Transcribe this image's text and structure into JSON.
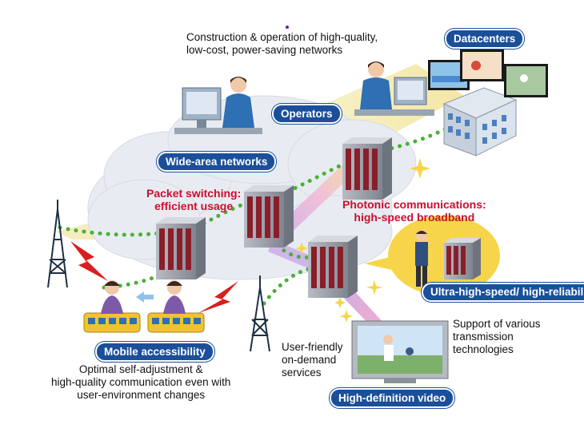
{
  "labels": {
    "datacenters": "Datacenters",
    "operators": "Operators",
    "wide_area_networks": "Wide-area networks",
    "ultra_high_speed_nodes": "Ultra-high-speed/\nhigh-reliability nodes",
    "mobile_accessibility": "Mobile accessibility",
    "hd_video": "High-definition video"
  },
  "captions": {
    "construction": "Construction & operation of high-quality,\nlow-cost, power-saving networks",
    "packet_switching": "Packet switching:\nefficient usage",
    "photonic": "Photonic communications:\nhigh-speed broadband",
    "transmission": "Support of various\ntransmission\ntechnologies",
    "on_demand": "User-friendly\non-demand\nservices",
    "optimal": "Optimal self-adjustment &\nhigh-quality communication even with\nuser-environment changes"
  },
  "colors": {
    "label_bg": "#1b4f9a",
    "highlight_text": "#c8102e",
    "dotted_link": "#4caf3a",
    "cloud": "#e8ecf2",
    "beam_yellow": "#f3e7a0",
    "beam_purple": "#b79ad8"
  },
  "icons": [
    "operator-person-icon",
    "datacenter-building-icon",
    "server-rack-icon",
    "radio-tower-icon",
    "train-icon",
    "tv-monitor-icon",
    "lightning-icon",
    "sparkle-icon",
    "engineer-person-icon"
  ]
}
